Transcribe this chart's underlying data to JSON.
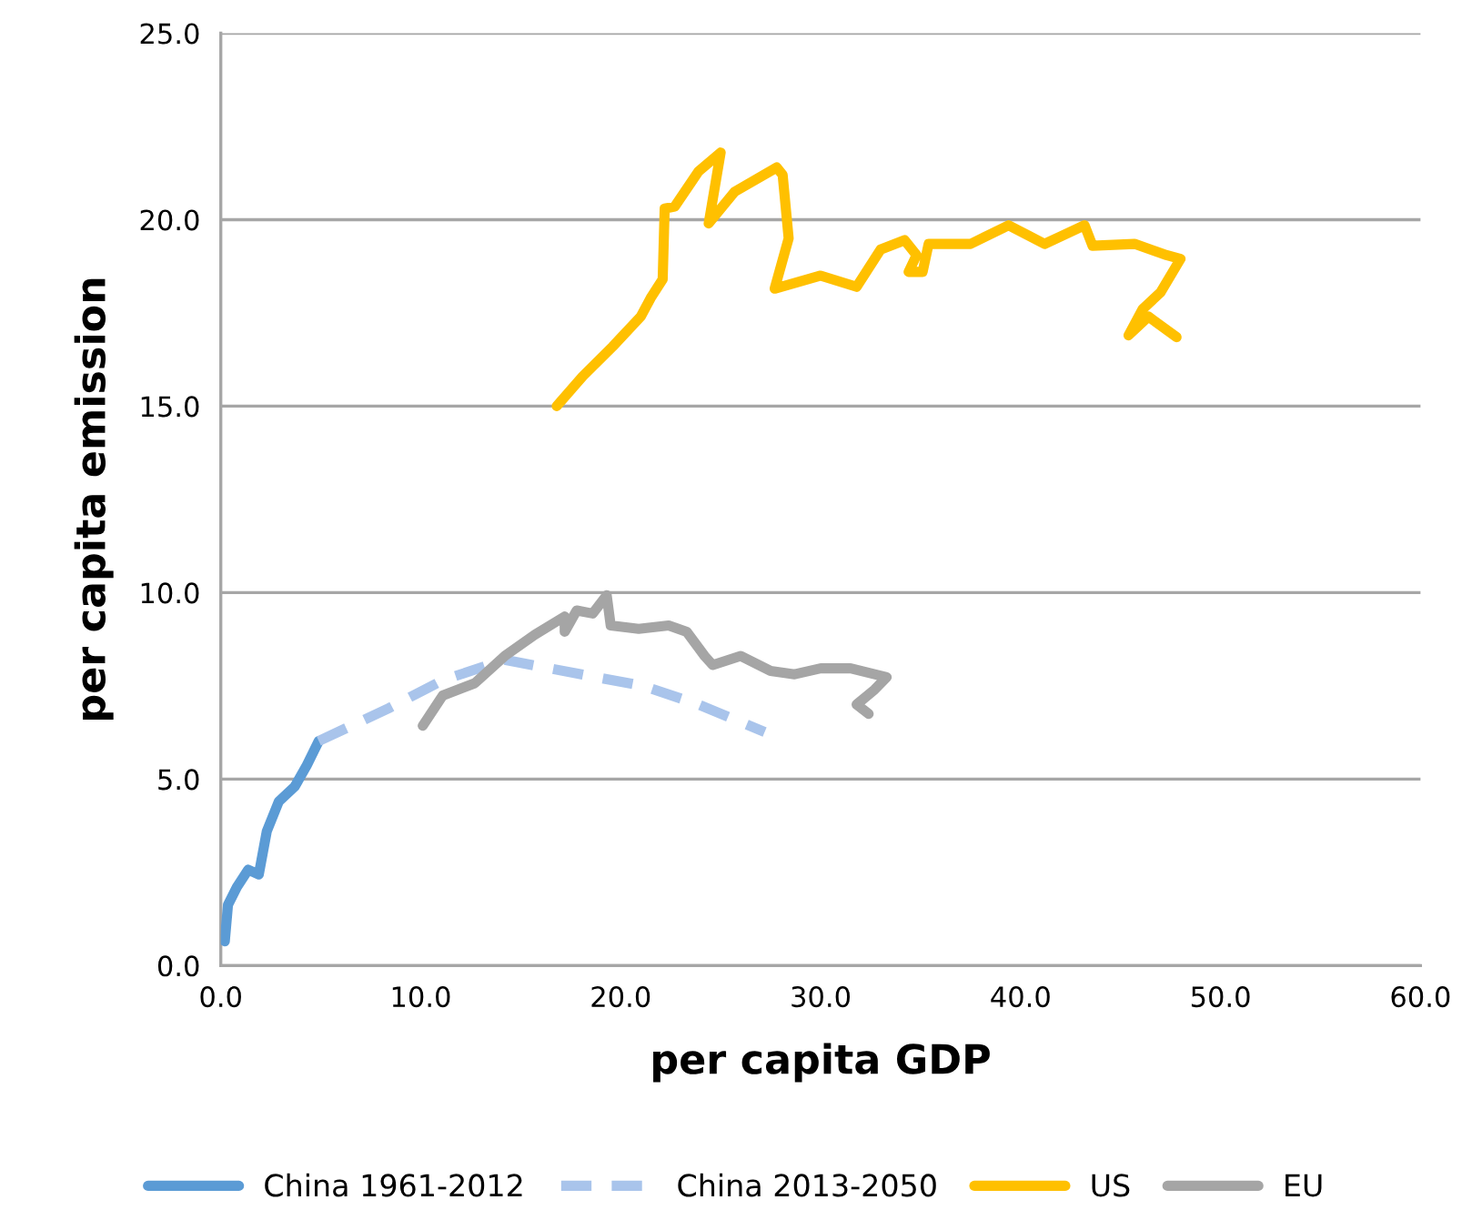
{
  "chart_data": {
    "type": "line",
    "xlabel": "per capita GDP",
    "ylabel": "per capita emission",
    "xlim": [
      0,
      60
    ],
    "ylim": [
      0,
      25
    ],
    "xticks": [
      {
        "value": 0,
        "label": "0.0"
      },
      {
        "value": 10,
        "label": "10.0"
      },
      {
        "value": 20,
        "label": "20.0"
      },
      {
        "value": 30,
        "label": "30.0"
      },
      {
        "value": 40,
        "label": "40.0"
      },
      {
        "value": 50,
        "label": "50.0"
      },
      {
        "value": 60,
        "label": "60.0"
      }
    ],
    "yticks": [
      {
        "value": 0,
        "label": "0.0"
      },
      {
        "value": 5,
        "label": "5.0"
      },
      {
        "value": 10,
        "label": "10.0"
      },
      {
        "value": 15,
        "label": "15.0"
      },
      {
        "value": 20,
        "label": "20.0"
      },
      {
        "value": 25,
        "label": "25.0"
      }
    ],
    "grid": "y",
    "legend": "bottom",
    "marker": "none",
    "series": [
      {
        "name": "China 1961-2012",
        "color": "#5b9bd5",
        "line_style": "solid",
        "x": [
          0.2,
          0.36,
          0.8,
          1.37,
          1.9,
          2.3,
          2.9,
          3.7,
          4.3,
          4.9
        ],
        "values": [
          0.65,
          1.63,
          2.1,
          2.57,
          2.44,
          3.6,
          4.4,
          4.8,
          5.37,
          6.02
        ]
      },
      {
        "name": "China 2013-2050",
        "color": "#a9c4eb",
        "line_style": "dashed",
        "x": [
          4.9,
          8.4,
          11.1,
          14.2,
          18.1,
          21.1,
          23.9,
          27.2
        ],
        "values": [
          6.02,
          6.9,
          7.65,
          8.2,
          7.8,
          7.5,
          7.0,
          6.26
        ]
      },
      {
        "name": "US",
        "color": "#ffc000",
        "line_style": "solid",
        "x": [
          16.8,
          18.1,
          19.6,
          21.0,
          21.5,
          22.1,
          22.2,
          22.7,
          23.9,
          25.0,
          24.4,
          25.7,
          27.8,
          28.1,
          28.4,
          27.7,
          30.0,
          31.8,
          33.0,
          34.2,
          34.8,
          34.4,
          35.1,
          35.4,
          37.5,
          39.4,
          41.2,
          43.2,
          43.6,
          45.7,
          47.3,
          48.0,
          47.0,
          46.1,
          45.4,
          46.4,
          47.8
        ],
        "values": [
          15.0,
          15.8,
          16.6,
          17.4,
          17.9,
          18.4,
          20.3,
          20.35,
          21.3,
          21.8,
          19.9,
          20.75,
          21.4,
          21.2,
          19.5,
          18.15,
          18.5,
          18.2,
          19.2,
          19.45,
          19.05,
          18.6,
          18.6,
          19.35,
          19.35,
          19.85,
          19.35,
          19.85,
          19.3,
          19.35,
          19.05,
          18.95,
          18.05,
          17.6,
          16.9,
          17.4,
          16.85
        ]
      },
      {
        "name": "EU",
        "color": "#a5a5a5",
        "line_style": "solid",
        "x": [
          10.1,
          11.1,
          12.7,
          14.2,
          15.7,
          17.2,
          17.2,
          17.8,
          18.6,
          19.3,
          19.5,
          20.9,
          22.4,
          23.3,
          24.2,
          24.6,
          26.0,
          27.5,
          28.7,
          30.0,
          31.5,
          33.3,
          32.7,
          31.8,
          32.4
        ],
        "values": [
          6.43,
          7.24,
          7.57,
          8.3,
          8.87,
          9.36,
          8.95,
          9.52,
          9.44,
          9.93,
          9.12,
          9.03,
          9.12,
          8.95,
          8.3,
          8.06,
          8.3,
          7.9,
          7.81,
          7.97,
          7.97,
          7.73,
          7.4,
          7.0,
          6.75
        ]
      }
    ]
  }
}
